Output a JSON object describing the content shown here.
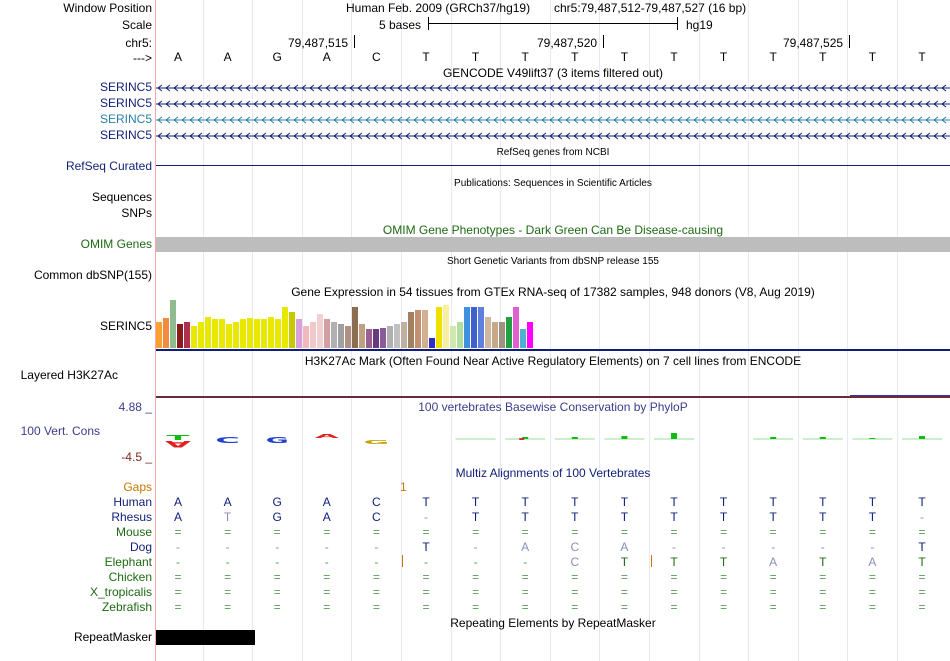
{
  "header": {
    "window_position_label": "Window Position",
    "scale_label": "Scale",
    "chrom_label": "chr5:",
    "strand_label": "--->",
    "assembly_title": "Human Feb. 2009 (GRCh37/hg19)",
    "coordinates": "chr5:79,487,512-79,487,527 (16 bp)",
    "scale_text": "5 bases",
    "scale_db": "hg19",
    "positions": [
      "79,487,515",
      "79,487,520",
      "79,487,525"
    ]
  },
  "sequence": [
    "A",
    "A",
    "G",
    "A",
    "C",
    "T",
    "T",
    "T",
    "T",
    "T",
    "T",
    "T",
    "T",
    "T",
    "T",
    "T"
  ],
  "tracks": {
    "gencode": {
      "title": "GENCODE V49lift37 (3 items filtered out)",
      "items": [
        {
          "name": "SERINC5",
          "color": "#0f1e78"
        },
        {
          "name": "SERINC5",
          "color": "#0f1e78"
        },
        {
          "name": "SERINC5",
          "color": "#2a7fa8"
        },
        {
          "name": "SERINC5",
          "color": "#0f1e78"
        }
      ]
    },
    "refseq": {
      "title": "RefSeq genes from NCBI",
      "label": "RefSeq Curated",
      "color": "#0f1e78"
    },
    "publications": {
      "title": "Publications: Sequences in Scientific Articles",
      "label1": "Sequences",
      "label2": "SNPs"
    },
    "omim": {
      "title": "OMIM Gene Phenotypes - Dark Green Can Be Disease-causing",
      "label": "OMIM Genes",
      "color": "#1d6a12"
    },
    "dbsnp": {
      "title": "Short Genetic Variants from dbSNP release 155",
      "label": "Common dbSNP(155)"
    },
    "gtex": {
      "title": "Gene Expression in 54 tissues from GTEx RNA-seq of 17382 samples, 948 donors (V8, Aug 2019)",
      "label": "SERINC5",
      "bars": [
        {
          "v": 0.55,
          "c": "#f9a030"
        },
        {
          "v": 0.62,
          "c": "#f08c3c"
        },
        {
          "v": 1.0,
          "c": "#8fbc8f"
        },
        {
          "v": 0.5,
          "c": "#8b1a1a"
        },
        {
          "v": 0.55,
          "c": "#b03050"
        },
        {
          "v": 0.45,
          "c": "#e8e800"
        },
        {
          "v": 0.55,
          "c": "#e8e800"
        },
        {
          "v": 0.65,
          "c": "#e8e800"
        },
        {
          "v": 0.6,
          "c": "#e8e800"
        },
        {
          "v": 0.6,
          "c": "#e8e800"
        },
        {
          "v": 0.5,
          "c": "#e8e800"
        },
        {
          "v": 0.55,
          "c": "#e8e800"
        },
        {
          "v": 0.6,
          "c": "#e8e800"
        },
        {
          "v": 0.62,
          "c": "#e8e800"
        },
        {
          "v": 0.6,
          "c": "#e8e800"
        },
        {
          "v": 0.6,
          "c": "#e8e800"
        },
        {
          "v": 0.65,
          "c": "#e8e800"
        },
        {
          "v": 0.6,
          "c": "#e8e800"
        },
        {
          "v": 0.85,
          "c": "#e8e800"
        },
        {
          "v": 0.75,
          "c": "#c8c800"
        },
        {
          "v": 0.6,
          "c": "#d8a0d8"
        },
        {
          "v": 0.45,
          "c": "#f0b8b8"
        },
        {
          "v": 0.55,
          "c": "#f0c8c8"
        },
        {
          "v": 0.7,
          "c": "#f0d0d0"
        },
        {
          "v": 0.6,
          "c": "#d0a0a0"
        },
        {
          "v": 0.55,
          "c": "#b0b0b0"
        },
        {
          "v": 0.5,
          "c": "#a0a0a0"
        },
        {
          "v": 0.45,
          "c": "#b09080"
        },
        {
          "v": 0.85,
          "c": "#8b6e50"
        },
        {
          "v": 0.5,
          "c": "#c0a080"
        },
        {
          "v": 0.4,
          "c": "#9a6090"
        },
        {
          "v": 0.4,
          "c": "#6a3a80"
        },
        {
          "v": 0.42,
          "c": "#8a5a9a"
        },
        {
          "v": 0.45,
          "c": "#b0b0b0"
        },
        {
          "v": 0.5,
          "c": "#c0c0c0"
        },
        {
          "v": 0.55,
          "c": "#c0b0a0"
        },
        {
          "v": 0.75,
          "c": "#a08060"
        },
        {
          "v": 0.8,
          "c": "#c09070"
        },
        {
          "v": 0.8,
          "c": "#d0b090"
        },
        {
          "v": 0.2,
          "c": "#3030c0"
        },
        {
          "v": 0.85,
          "c": "#f0e000"
        },
        {
          "v": 0.9,
          "c": "#f8f0a0"
        },
        {
          "v": 0.45,
          "c": "#d0e8b0"
        },
        {
          "v": 0.55,
          "c": "#b0e0a0"
        },
        {
          "v": 0.85,
          "c": "#4090e0"
        },
        {
          "v": 0.85,
          "c": "#4060d0"
        },
        {
          "v": 0.85,
          "c": "#6080e0"
        },
        {
          "v": 0.65,
          "c": "#d0b8a0"
        },
        {
          "v": 0.55,
          "c": "#c8a888"
        },
        {
          "v": 0.55,
          "c": "#a09080"
        },
        {
          "v": 0.65,
          "c": "#20a040"
        },
        {
          "v": 0.85,
          "c": "#e060d0"
        },
        {
          "v": 0.4,
          "c": "#50b0d0"
        },
        {
          "v": 0.55,
          "c": "#ff00ff"
        }
      ]
    },
    "h3k27ac": {
      "title": "H3K27Ac Mark (Often Found Near Active Regulatory Elements) on 7 cell lines from ENCODE",
      "label": "Layered H3K27Ac"
    },
    "phylop": {
      "title": "100 vertebrates Basewise Conservation by PhyloP",
      "label": "100 Vert. Cons",
      "max": "4.88 _",
      "min": "-4.5 _",
      "color": "#3c3c8c"
    },
    "multiz": {
      "title": "Multiz Alignments of 100 Vertebrates",
      "gaps_label": "Gaps",
      "gaps_value": "1",
      "gaps_color": "#c87800",
      "species": [
        {
          "name": "Human",
          "color": "#0f1e78",
          "row": [
            "A",
            "A",
            "G",
            "A",
            "C",
            "T",
            "T",
            "T",
            "T",
            "T",
            "T",
            "T",
            "T",
            "T",
            "T",
            "T"
          ]
        },
        {
          "name": "Rhesus",
          "color": "#0f1e78",
          "row": [
            "A",
            "T",
            "G",
            "A",
            "C",
            "-",
            "T",
            "T",
            "T",
            "T",
            "T",
            "T",
            "T",
            "T",
            "T",
            "-"
          ]
        },
        {
          "name": "Mouse",
          "color": "#1d6a12",
          "row": [
            "=",
            "=",
            "=",
            "=",
            "=",
            "=",
            "=",
            "=",
            "=",
            "=",
            "=",
            "=",
            "=",
            "=",
            "=",
            "="
          ]
        },
        {
          "name": "Dog",
          "color": "#0f1e78",
          "row": [
            "-",
            "-",
            "-",
            "-",
            "-",
            "T",
            "-",
            "A",
            "C",
            "A",
            "-",
            "-",
            "-",
            "-",
            "-",
            "T"
          ]
        },
        {
          "name": "Elephant",
          "color": "#1d6a12",
          "row": [
            "-",
            "-",
            "-",
            "-",
            "-",
            "-",
            "-",
            "-",
            "C",
            "T",
            "T",
            "T",
            "A",
            "T",
            "A",
            "T"
          ]
        },
        {
          "name": "Chicken",
          "color": "#1d6a12",
          "row": [
            "=",
            "=",
            "=",
            "=",
            "=",
            "=",
            "=",
            "=",
            "=",
            "=",
            "=",
            "=",
            "=",
            "=",
            "=",
            "="
          ]
        },
        {
          "name": "X_tropicalis",
          "color": "#1d6a12",
          "row": [
            "=",
            "=",
            "=",
            "=",
            "=",
            "=",
            "=",
            "=",
            "=",
            "=",
            "=",
            "=",
            "=",
            "=",
            "=",
            "="
          ]
        },
        {
          "name": "Zebrafish",
          "color": "#1d6a12",
          "row": [
            "=",
            "=",
            "=",
            "=",
            "=",
            "=",
            "=",
            "=",
            "=",
            "=",
            "=",
            "=",
            "=",
            "=",
            "=",
            "="
          ]
        }
      ]
    },
    "repeatmasker": {
      "title": "Repeating Elements by RepeatMasker",
      "label": "RepeatMasker"
    }
  }
}
